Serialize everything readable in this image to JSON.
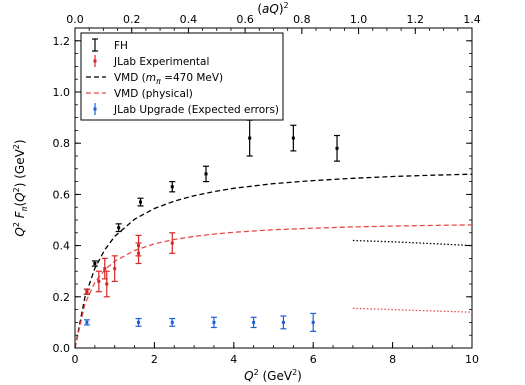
{
  "chart_data": {
    "type": "scatter",
    "xlabel": "Q² (GeV²)",
    "ylabel": "Q² Fπ(Q²) (GeV²)",
    "top_xlabel": "(aQ)²",
    "xlim": [
      0,
      10
    ],
    "ylim": [
      0,
      1.25
    ],
    "top_xlim": [
      0,
      1.4
    ],
    "x_ticks": [
      "0",
      "2",
      "4",
      "6",
      "8",
      "10"
    ],
    "y_ticks": [
      "0.0",
      "0.2",
      "0.4",
      "0.6",
      "0.8",
      "1.0",
      "1.2"
    ],
    "top_x_ticks": [
      "0.0",
      "0.2",
      "0.4",
      "0.6",
      "0.8",
      "1.0",
      "1.2",
      "1.4"
    ],
    "legend": {
      "position": "top-left",
      "entries": [
        "FH",
        "JLab Experimental",
        "VMD (m_π = 470 MeV)",
        "VMD (physical)",
        "JLab Upgrade (Expected errors)"
      ]
    },
    "series": [
      {
        "name": "FH",
        "kind": "errorbar",
        "color": "#000000",
        "points": [
          {
            "x": 0.3,
            "y": 0.22,
            "err": 0.01
          },
          {
            "x": 0.5,
            "y": 0.33,
            "err": 0.01
          },
          {
            "x": 1.1,
            "y": 0.47,
            "err": 0.015
          },
          {
            "x": 1.65,
            "y": 0.57,
            "err": 0.015
          },
          {
            "x": 2.45,
            "y": 0.63,
            "err": 0.02
          },
          {
            "x": 3.3,
            "y": 0.68,
            "err": 0.03
          },
          {
            "x": 4.4,
            "y": 0.82,
            "err": 0.07
          },
          {
            "x": 5.5,
            "y": 0.82,
            "err": 0.05
          },
          {
            "x": 6.6,
            "y": 0.78,
            "err": 0.05
          }
        ]
      },
      {
        "name": "JLab Experimental",
        "kind": "errorbar",
        "color": "#d62728",
        "points": [
          {
            "x": 0.3,
            "y": 0.22,
            "err": 0.01
          },
          {
            "x": 0.6,
            "y": 0.26,
            "err": 0.04
          },
          {
            "x": 0.75,
            "y": 0.31,
            "err": 0.04
          },
          {
            "x": 0.8,
            "y": 0.25,
            "err": 0.05
          },
          {
            "x": 1.0,
            "y": 0.31,
            "err": 0.05
          },
          {
            "x": 1.6,
            "y": 0.37,
            "err": 0.04
          },
          {
            "x": 1.6,
            "y": 0.4,
            "err": 0.04
          },
          {
            "x": 2.45,
            "y": 0.41,
            "err": 0.04
          }
        ]
      },
      {
        "name": "JLab Upgrade (Expected errors)",
        "kind": "errorbar",
        "color": "#1f5fd6",
        "points": [
          {
            "x": 0.3,
            "y": 0.1,
            "err": 0.01
          },
          {
            "x": 1.6,
            "y": 0.1,
            "err": 0.015
          },
          {
            "x": 2.45,
            "y": 0.1,
            "err": 0.015
          },
          {
            "x": 3.5,
            "y": 0.1,
            "err": 0.02
          },
          {
            "x": 4.5,
            "y": 0.1,
            "err": 0.02
          },
          {
            "x": 5.25,
            "y": 0.1,
            "err": 0.025
          },
          {
            "x": 6.0,
            "y": 0.1,
            "err": 0.035
          }
        ]
      },
      {
        "name": "VMD (m_π = 470 MeV)",
        "kind": "curve",
        "style": "dashed",
        "color": "#000000",
        "x": [
          0,
          0.25,
          0.5,
          0.75,
          1,
          1.5,
          2,
          2.5,
          3,
          3.5,
          4,
          5,
          6,
          7,
          8,
          9,
          10
        ],
        "y": [
          0,
          0.198,
          0.311,
          0.384,
          0.436,
          0.503,
          0.545,
          0.574,
          0.595,
          0.611,
          0.624,
          0.642,
          0.654,
          0.663,
          0.67,
          0.675,
          0.679
        ]
      },
      {
        "name": "VMD (physical)",
        "kind": "curve",
        "style": "dashed",
        "color": "#e84a4a",
        "x": [
          0,
          0.25,
          0.5,
          0.75,
          1,
          1.5,
          2,
          2.5,
          3,
          3.5,
          4,
          5,
          6,
          7,
          8,
          9,
          10
        ],
        "y": [
          0,
          0.172,
          0.256,
          0.306,
          0.339,
          0.381,
          0.407,
          0.424,
          0.436,
          0.445,
          0.452,
          0.462,
          0.468,
          0.473,
          0.476,
          0.479,
          0.481
        ]
      },
      {
        "name": "",
        "kind": "curve",
        "style": "dotted",
        "color": "#000000",
        "x": [
          7,
          8,
          9,
          10
        ],
        "y": [
          0.42,
          0.415,
          0.408,
          0.4
        ]
      },
      {
        "name": "",
        "kind": "curve",
        "style": "dotted",
        "color": "#e84a4a",
        "x": [
          7,
          8,
          9,
          10
        ],
        "y": [
          0.155,
          0.15,
          0.145,
          0.14
        ]
      }
    ]
  }
}
